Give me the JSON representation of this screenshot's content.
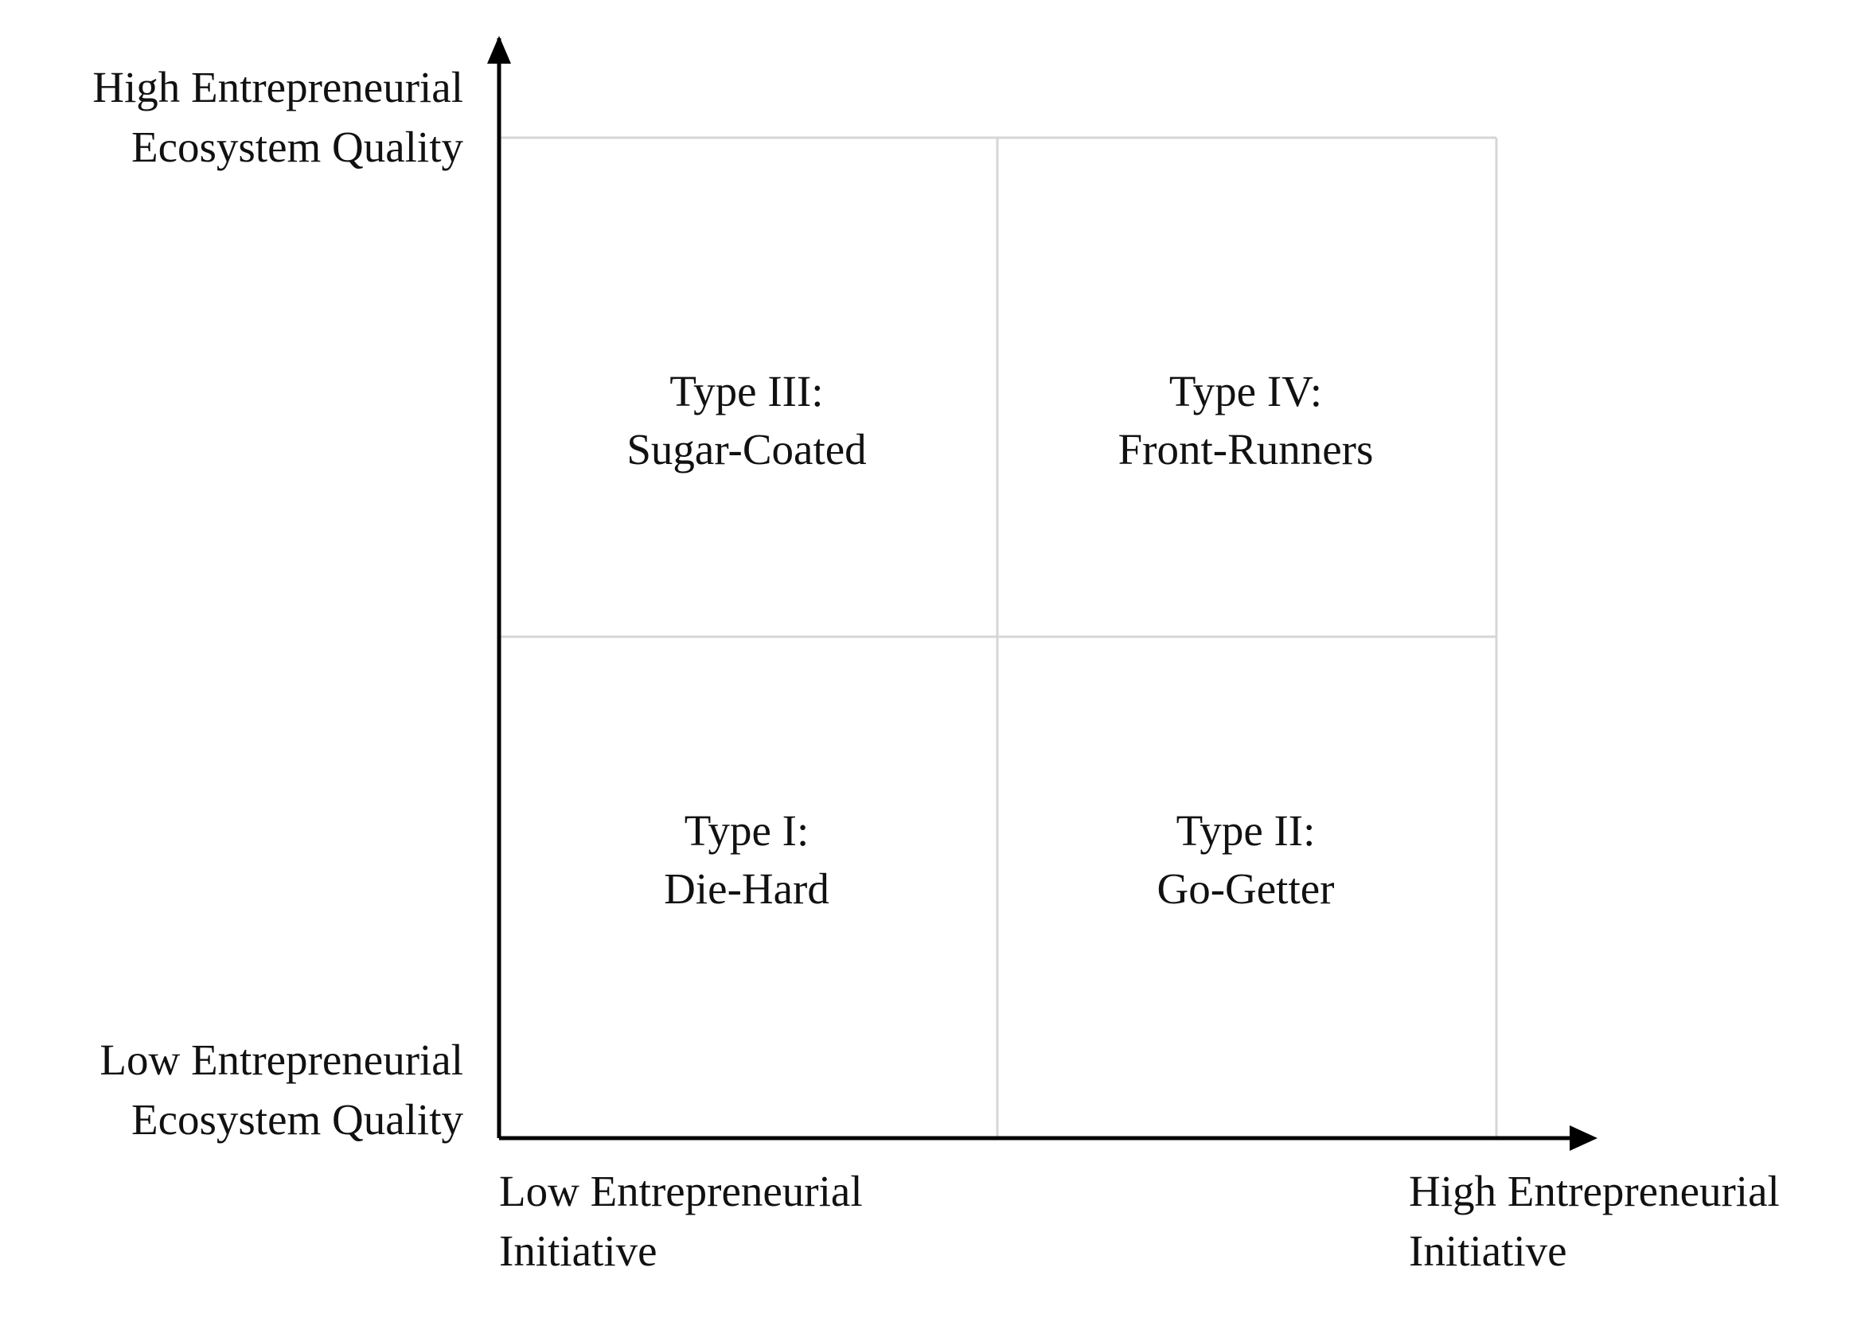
{
  "y_axis": {
    "high": [
      "High Entrepreneurial",
      "Ecosystem Quality"
    ],
    "low": [
      "Low Entrepreneurial",
      "Ecosystem Quality"
    ]
  },
  "x_axis": {
    "low": [
      "Low Entrepreneurial",
      "Initiative"
    ],
    "high": [
      "High Entrepreneurial",
      "Initiative"
    ]
  },
  "quadrants": [
    {
      "type": "Type III:",
      "name": "Sugar-Coated"
    },
    {
      "type": "Type IV:",
      "name": "Front-Runners"
    },
    {
      "type": "Type I:",
      "name": "Die-Hard"
    },
    {
      "type": "Type II:",
      "name": "Go-Getter"
    }
  ]
}
